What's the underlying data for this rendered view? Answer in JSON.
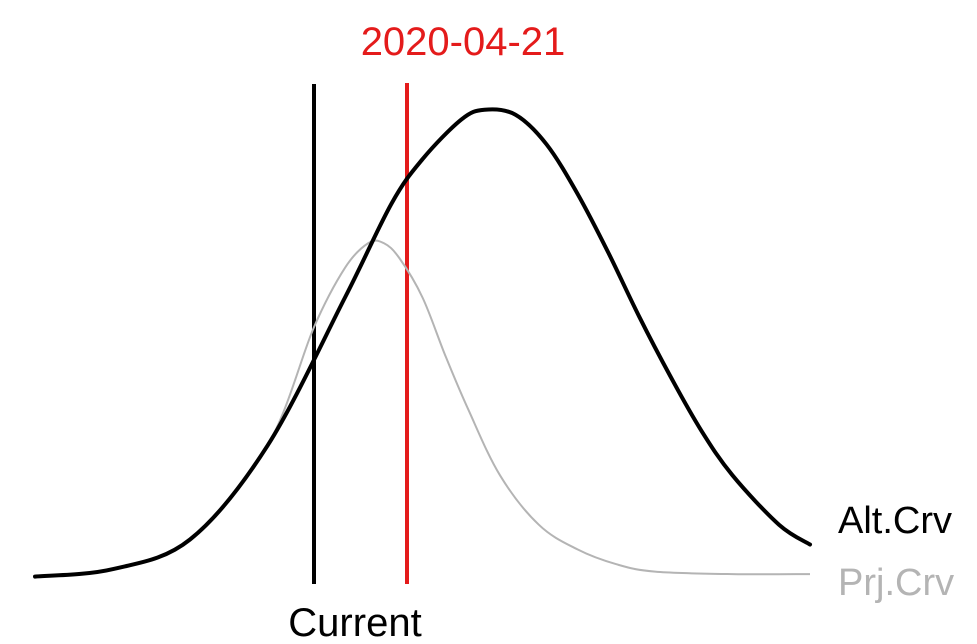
{
  "chart_data": {
    "type": "line",
    "title": "",
    "xlabel": "",
    "ylabel": "",
    "grid": false,
    "legend_placement": "right, at curve ends",
    "series": [
      {
        "name": "Alt.Crv",
        "color": "#000000",
        "x": [
          0,
          10,
          20,
          30,
          40,
          46,
          50,
          55,
          58,
          62,
          66,
          70,
          74,
          78,
          82,
          86,
          90,
          96,
          100
        ],
        "values": [
          1.5,
          3,
          9,
          28,
          58,
          77,
          86,
          94,
          96,
          95,
          89,
          79,
          67,
          54,
          42,
          31,
          22,
          12,
          8
        ]
      },
      {
        "name": "Prj.Crv",
        "color": "#b4b4b4",
        "x": [
          0,
          10,
          20,
          30,
          36,
          40,
          43,
          45,
          47,
          50,
          53,
          56,
          60,
          65,
          70,
          75,
          80,
          90,
          100
        ],
        "values": [
          1.5,
          3,
          9,
          28,
          52,
          64,
          69,
          69,
          66,
          58,
          46,
          35,
          22,
          12,
          7,
          4,
          2.5,
          2,
          2
        ]
      }
    ],
    "annotations": [
      {
        "label": "Current",
        "x": 36,
        "color": "#000000",
        "label_position": "bottom"
      },
      {
        "label": "2020-04-21",
        "x": 48,
        "color": "#e41b1b",
        "label_position": "top"
      }
    ]
  }
}
